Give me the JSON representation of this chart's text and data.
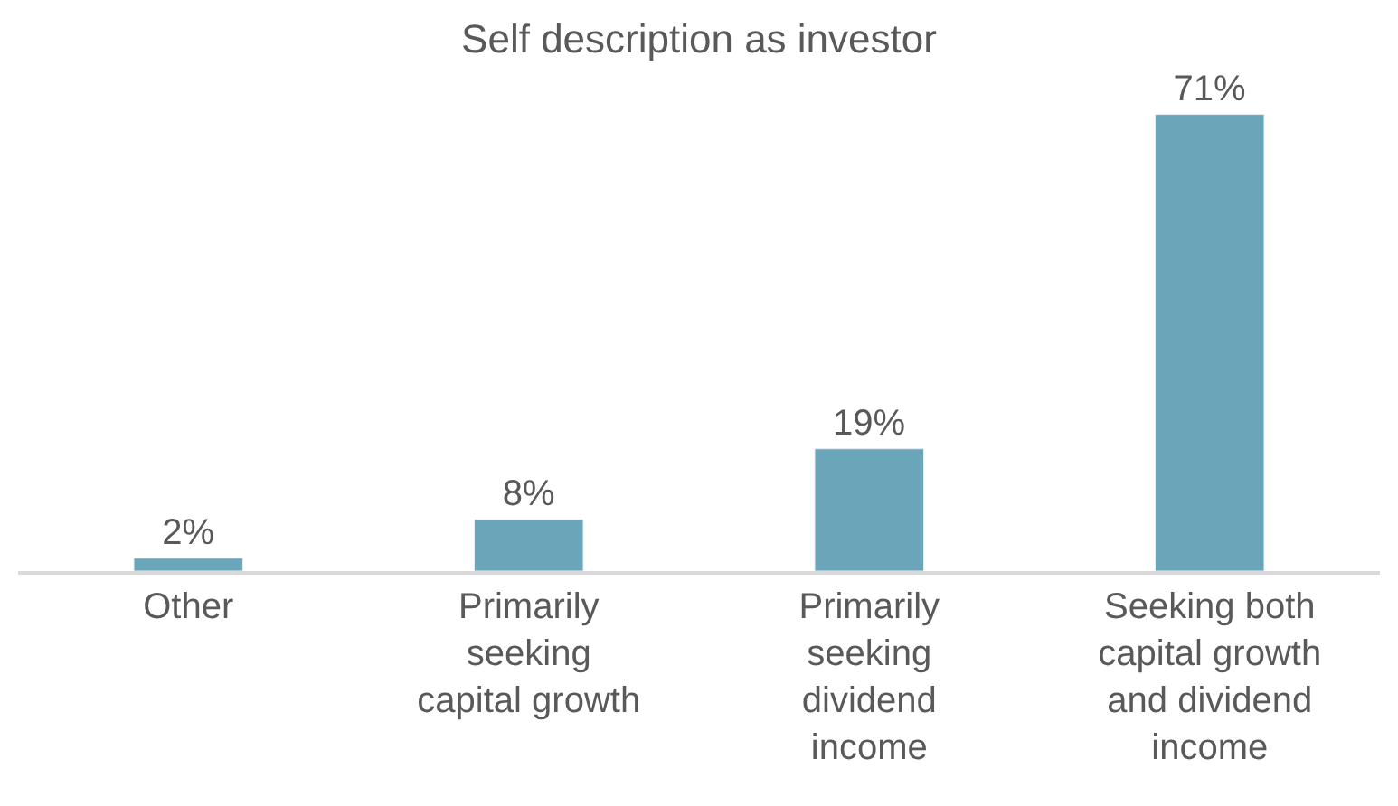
{
  "chart_data": {
    "type": "bar",
    "title": "Self description as investor",
    "categories": [
      "Other",
      "Primarily seeking capital growth",
      "Primarily seeking dividend income",
      "Seeking both capital growth and dividend income"
    ],
    "values": [
      2,
      8,
      19,
      71
    ],
    "color": "#6aa5ba",
    "value_labels": [
      "2%",
      "8%",
      "19%",
      "71%"
    ]
  }
}
